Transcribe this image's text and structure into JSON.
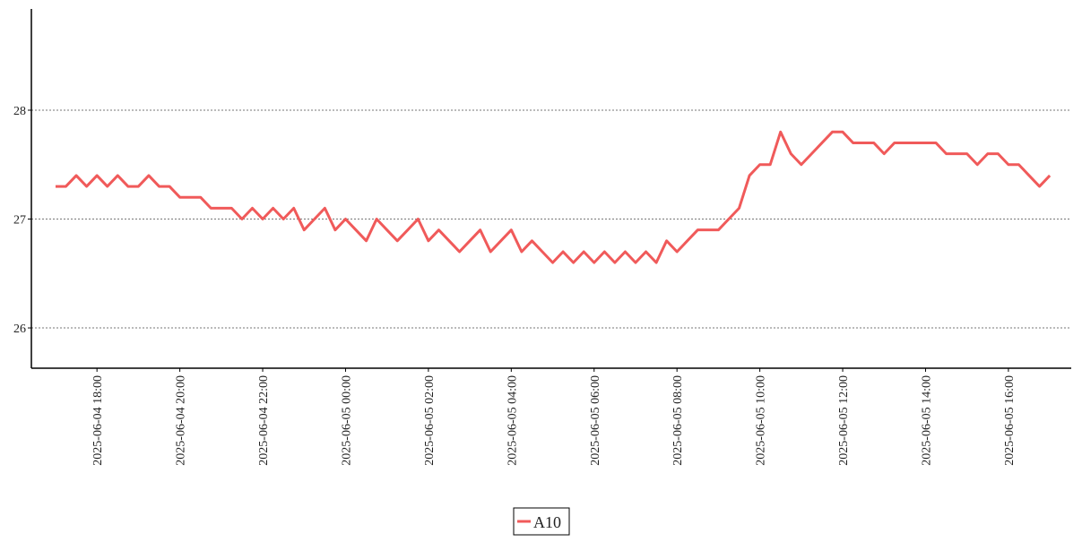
{
  "chart_data": {
    "type": "line",
    "x": [
      "2025-06-04 17:00",
      "2025-06-04 17:15",
      "2025-06-04 17:30",
      "2025-06-04 17:45",
      "2025-06-04 18:00",
      "2025-06-04 18:15",
      "2025-06-04 18:30",
      "2025-06-04 18:45",
      "2025-06-04 19:00",
      "2025-06-04 19:15",
      "2025-06-04 19:30",
      "2025-06-04 19:45",
      "2025-06-04 20:00",
      "2025-06-04 20:15",
      "2025-06-04 20:30",
      "2025-06-04 20:45",
      "2025-06-04 21:00",
      "2025-06-04 21:15",
      "2025-06-04 21:30",
      "2025-06-04 21:45",
      "2025-06-04 22:00",
      "2025-06-04 22:15",
      "2025-06-04 22:30",
      "2025-06-04 22:45",
      "2025-06-04 23:00",
      "2025-06-04 23:15",
      "2025-06-04 23:30",
      "2025-06-04 23:45",
      "2025-06-05 00:00",
      "2025-06-05 00:15",
      "2025-06-05 00:30",
      "2025-06-05 00:45",
      "2025-06-05 01:00",
      "2025-06-05 01:15",
      "2025-06-05 01:30",
      "2025-06-05 01:45",
      "2025-06-05 02:00",
      "2025-06-05 02:15",
      "2025-06-05 02:30",
      "2025-06-05 02:45",
      "2025-06-05 03:00",
      "2025-06-05 03:15",
      "2025-06-05 03:30",
      "2025-06-05 03:45",
      "2025-06-05 04:00",
      "2025-06-05 04:15",
      "2025-06-05 04:30",
      "2025-06-05 04:45",
      "2025-06-05 05:00",
      "2025-06-05 05:15",
      "2025-06-05 05:30",
      "2025-06-05 05:45",
      "2025-06-05 06:00",
      "2025-06-05 06:15",
      "2025-06-05 06:30",
      "2025-06-05 06:45",
      "2025-06-05 07:00",
      "2025-06-05 07:15",
      "2025-06-05 07:30",
      "2025-06-05 07:45",
      "2025-06-05 08:00",
      "2025-06-05 08:15",
      "2025-06-05 08:30",
      "2025-06-05 08:45",
      "2025-06-05 09:00",
      "2025-06-05 09:15",
      "2025-06-05 09:30",
      "2025-06-05 09:45",
      "2025-06-05 10:00",
      "2025-06-05 10:15",
      "2025-06-05 10:30",
      "2025-06-05 10:45",
      "2025-06-05 11:00",
      "2025-06-05 11:15",
      "2025-06-05 11:30",
      "2025-06-05 11:45",
      "2025-06-05 12:00",
      "2025-06-05 12:15",
      "2025-06-05 12:30",
      "2025-06-05 12:45",
      "2025-06-05 13:00",
      "2025-06-05 13:15",
      "2025-06-05 13:30",
      "2025-06-05 13:45",
      "2025-06-05 14:00",
      "2025-06-05 14:15",
      "2025-06-05 14:30",
      "2025-06-05 14:45",
      "2025-06-05 15:00",
      "2025-06-05 15:15",
      "2025-06-05 15:30",
      "2025-06-05 15:45",
      "2025-06-05 16:00",
      "2025-06-05 16:15",
      "2025-06-05 16:30",
      "2025-06-05 16:45",
      "2025-06-05 17:00"
    ],
    "series": [
      {
        "name": "A10",
        "color": "#f05a5a",
        "values": [
          27.3,
          27.3,
          27.4,
          27.3,
          27.4,
          27.3,
          27.4,
          27.3,
          27.3,
          27.4,
          27.3,
          27.3,
          27.2,
          27.2,
          27.2,
          27.1,
          27.1,
          27.1,
          27.0,
          27.1,
          27.0,
          27.1,
          27.0,
          27.1,
          26.9,
          27.0,
          27.1,
          26.9,
          27.0,
          26.9,
          26.8,
          27.0,
          26.9,
          26.8,
          26.9,
          27.0,
          26.8,
          26.9,
          26.8,
          26.7,
          26.8,
          26.9,
          26.7,
          26.8,
          26.9,
          26.7,
          26.8,
          26.7,
          26.6,
          26.7,
          26.6,
          26.7,
          26.6,
          26.7,
          26.6,
          26.7,
          26.6,
          26.7,
          26.6,
          26.8,
          26.7,
          26.8,
          26.9,
          26.9,
          26.9,
          27.0,
          27.1,
          27.4,
          27.5,
          27.5,
          27.8,
          27.6,
          27.5,
          27.6,
          27.7,
          27.8,
          27.8,
          27.7,
          27.7,
          27.7,
          27.6,
          27.7,
          27.7,
          27.7,
          27.7,
          27.7,
          27.6,
          27.6,
          27.6,
          27.5,
          27.6,
          27.6,
          27.5,
          27.5,
          27.4,
          27.3,
          27.4
        ]
      }
    ],
    "xlim": [
      "2025-06-04 16:25",
      "2025-06-05 17:31"
    ],
    "xticks": [
      "2025-06-04 18:00",
      "2025-06-04 20:00",
      "2025-06-04 22:00",
      "2025-06-05 00:00",
      "2025-06-05 02:00",
      "2025-06-05 04:00",
      "2025-06-05 06:00",
      "2025-06-05 08:00",
      "2025-06-05 10:00",
      "2025-06-05 12:00",
      "2025-06-05 14:00",
      "2025-06-05 16:00"
    ],
    "ylim": [
      25.63,
      28.93
    ],
    "yticks": [
      26,
      27,
      28
    ],
    "grid": true
  }
}
